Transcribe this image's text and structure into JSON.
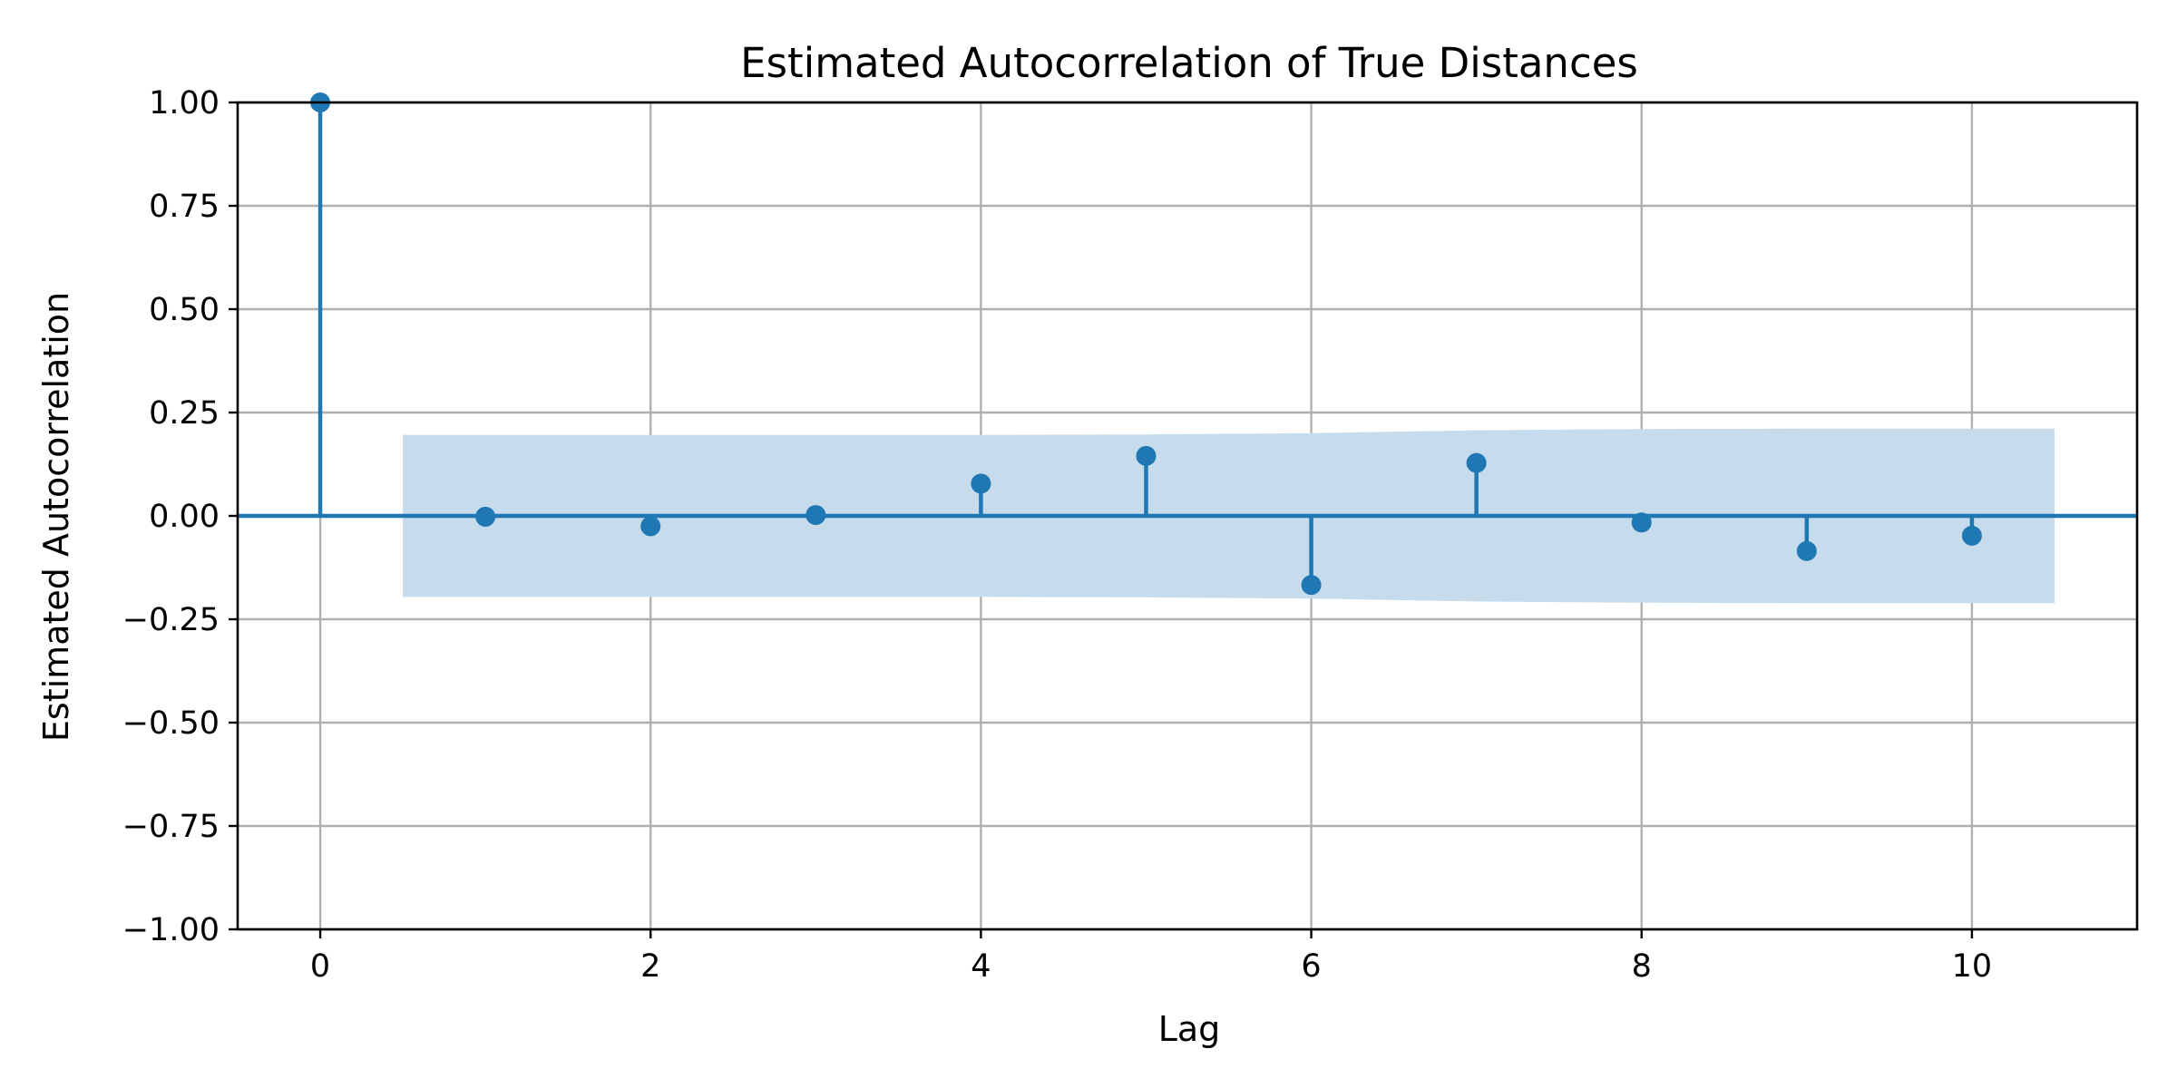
{
  "chart_data": {
    "type": "stem",
    "title": "Estimated Autocorrelation of True Distances",
    "xlabel": "Lag",
    "ylabel": "Estimated Autocorrelation",
    "x": [
      0,
      1,
      2,
      3,
      4,
      5,
      6,
      7,
      8,
      9,
      10
    ],
    "values": [
      1.0,
      -0.002,
      -0.025,
      0.002,
      0.078,
      0.145,
      -0.167,
      0.128,
      -0.016,
      -0.085,
      -0.048
    ],
    "xlim": [
      -0.5,
      11.0
    ],
    "ylim": [
      -1.0,
      1.0
    ],
    "x_ticks": [
      0,
      2,
      4,
      6,
      8,
      10
    ],
    "x_tick_labels": [
      "0",
      "2",
      "4",
      "6",
      "8",
      "10"
    ],
    "y_ticks": [
      -1.0,
      -0.75,
      -0.5,
      -0.25,
      0.0,
      0.25,
      0.5,
      0.75,
      1.0
    ],
    "y_tick_labels": [
      "−1.00",
      "−0.75",
      "−0.50",
      "−0.25",
      "0.00",
      "0.25",
      "0.50",
      "0.75",
      "1.00"
    ],
    "confidence_band": {
      "x": [
        0.5,
        1,
        2,
        3,
        4,
        5,
        6,
        7,
        8,
        9,
        10,
        10.5
      ],
      "upper": [
        0.196,
        0.196,
        0.196,
        0.196,
        0.196,
        0.197,
        0.2,
        0.207,
        0.21,
        0.211,
        0.211,
        0.211
      ],
      "lower": [
        -0.196,
        -0.196,
        -0.196,
        -0.196,
        -0.196,
        -0.197,
        -0.2,
        -0.207,
        -0.21,
        -0.211,
        -0.211,
        -0.211
      ]
    },
    "grid": true,
    "colors": {
      "stem": "#1f77b4",
      "band": "#c6dcec",
      "grid": "#b0b0b0",
      "axes": "#000000"
    }
  }
}
